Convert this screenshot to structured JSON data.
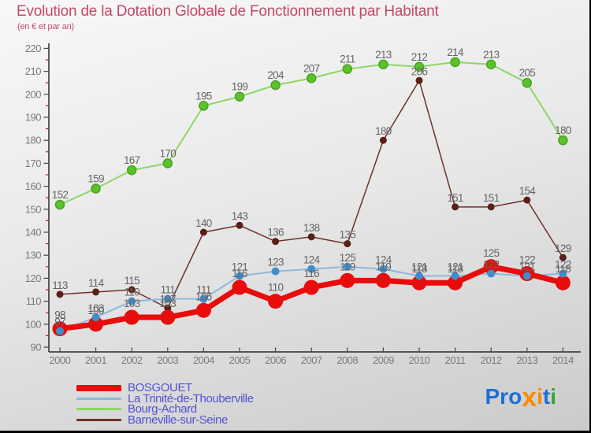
{
  "title": "Evolution de la Dotation Globale de Fonctionnement par Habitant",
  "subtitle": "(en € et par an)",
  "chart_data": {
    "type": "line",
    "x": [
      2000,
      2001,
      2002,
      2003,
      2004,
      2005,
      2006,
      2007,
      2008,
      2009,
      2010,
      2011,
      2012,
      2013,
      2014
    ],
    "series": [
      {
        "name": "BOSGOUET",
        "values": [
          98,
          100,
          103,
          103,
          106,
          116,
          110,
          116,
          119,
          119,
          118,
          118,
          125,
          122,
          118
        ],
        "color": "#e80c0c",
        "line_color": "#e80c0c",
        "line_width": 7,
        "dot_radius": 9.5,
        "label_offset": 13
      },
      {
        "name": "La Trinité-de-Thouberville",
        "values": [
          97,
          103,
          110,
          111,
          111,
          121,
          123,
          124,
          125,
          124,
          121,
          121,
          122,
          121,
          122
        ],
        "color": "#3f8ecc",
        "line_color": "#8db9da",
        "line_width": 2,
        "dot_radius": 5,
        "label_offset": 7
      },
      {
        "name": "Bourg-Achard",
        "values": [
          152,
          159,
          167,
          170,
          195,
          199,
          204,
          207,
          211,
          213,
          212,
          214,
          213,
          205,
          180
        ],
        "color": "#5bc22e",
        "dot_stroke": "#49a31d",
        "line_color": "#8dd765",
        "line_width": 2,
        "dot_radius": 5.5,
        "label_offset": 8
      },
      {
        "name": "Barneville-sur-Seine",
        "values": [
          113,
          114,
          115,
          107,
          140,
          143,
          136,
          138,
          135,
          180,
          206,
          151,
          151,
          154,
          129
        ],
        "color": "#5a1f16",
        "line_color": "#6f3029",
        "line_width": 1.5,
        "dot_radius": 4.5,
        "label_offset": 7
      }
    ],
    "ylim": [
      90,
      220
    ],
    "y_major_step": 10,
    "y_minor_step": 5,
    "grid": false,
    "legend_position": "bottom-left",
    "label_color": "#646464",
    "axis_color": "#2a2a2a",
    "tick_label_color": "#7a7a7a",
    "minor_tick_color": "#cc1111"
  },
  "logo": {
    "name": "Proxiti",
    "letters": [
      {
        "t": "P",
        "c": "#1c6fd6"
      },
      {
        "t": "r",
        "c": "#1c6fd6"
      },
      {
        "t": "o",
        "c": "#1c6fd6"
      },
      {
        "t": "x",
        "c": "#f78c00",
        "x": true
      },
      {
        "t": "i",
        "c": "#f78c00"
      },
      {
        "t": "t",
        "c": "#1c6fd6"
      },
      {
        "t": "i",
        "c": "#2fa82f"
      }
    ]
  }
}
